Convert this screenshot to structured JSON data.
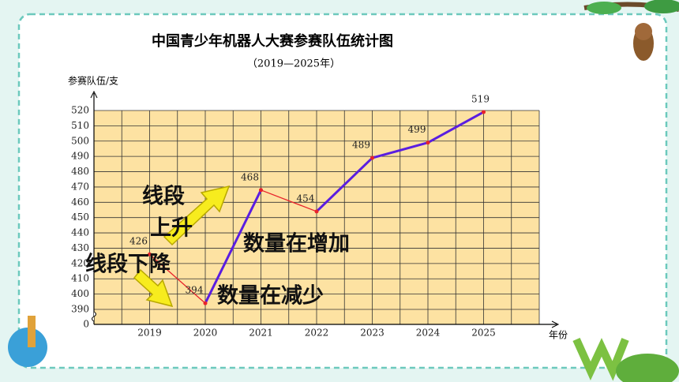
{
  "chart_data": {
    "type": "line",
    "title": "中国青少年机器人大赛参赛队伍统计图",
    "subtitle": "（2019—2025年）",
    "y_label": "参赛队伍/支",
    "x_label": "年份",
    "categories": [
      "2019",
      "2020",
      "2021",
      "2022",
      "2023",
      "2024",
      "2025"
    ],
    "values": [
      426,
      394,
      468,
      454,
      489,
      499,
      519
    ],
    "ylim": [
      0,
      520
    ],
    "axis_break": [
      0,
      390
    ],
    "yticks": [
      0,
      390,
      400,
      410,
      420,
      430,
      440,
      450,
      460,
      470,
      480,
      490,
      500,
      510,
      520
    ],
    "grid": true,
    "point_color": "#e8232b",
    "segment_colors": [
      "#e8232b",
      "#5a1ee0",
      "#e8232b",
      "#5a1ee0",
      "#5a1ee0",
      "#5a1ee0"
    ],
    "annotations": [
      "线段",
      "上升",
      "线段下降",
      "数量在增加",
      "数量在减少"
    ]
  }
}
